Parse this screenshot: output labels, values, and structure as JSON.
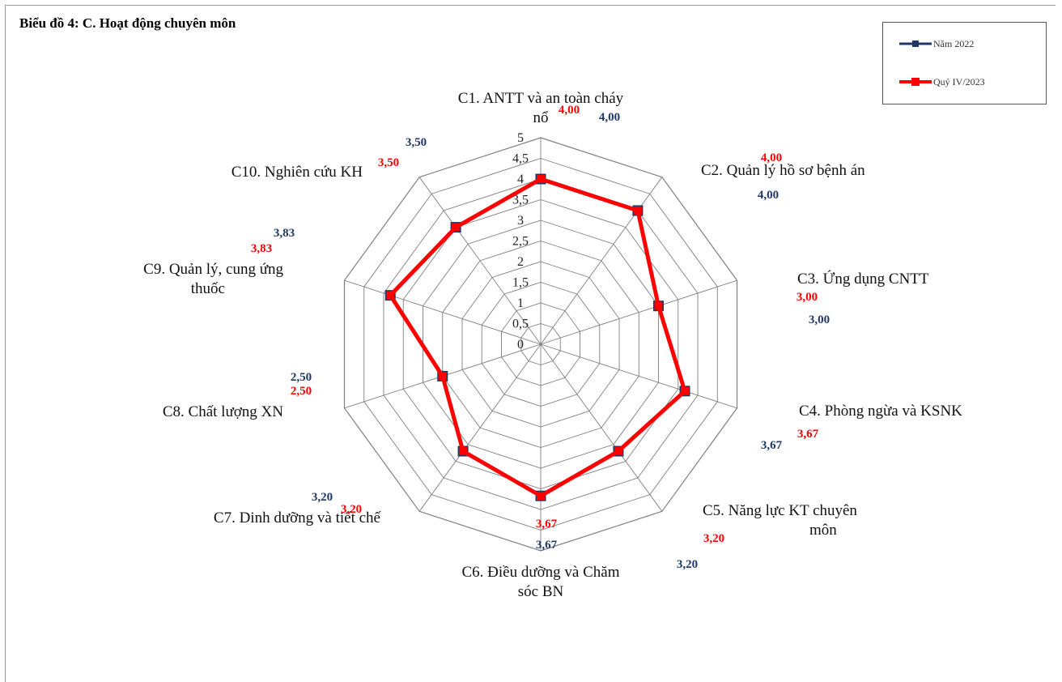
{
  "title": "Biểu đồ 4: C. Hoạt động chuyên môn",
  "colors": {
    "series_2022": "#1f3864",
    "series_2023": "#ff0000",
    "grid": "#7f7f7f"
  },
  "chart_data": {
    "type": "radar",
    "title": "Biểu đồ 4: C. Hoạt động chuyên môn",
    "categories": [
      [
        "C1. ANTT và an toàn cháy",
        "nổ"
      ],
      [
        "C2. Quản lý hồ sơ bệnh án"
      ],
      [
        "C3. Ứng dụng CNTT"
      ],
      [
        "C4. Phòng ngừa và KSNK"
      ],
      [
        "C5. Năng lực KT chuyên",
        "môn"
      ],
      [
        "C6. Điều dưỡng và Chăm",
        "sóc BN"
      ],
      [
        "C7. Dinh dưỡng và tiết chế"
      ],
      [
        "C8. Chất lượng XN"
      ],
      [
        "C9. Quản lý, cung ứng",
        "thuốc"
      ],
      [
        "C10. Nghiên cứu KH"
      ]
    ],
    "ticks": [
      "0",
      "0,5",
      "1",
      "1,5",
      "2",
      "2,5",
      "3",
      "3,5",
      "4",
      "4,5",
      "5"
    ],
    "rmax": 5,
    "legend": "top-right",
    "series": [
      {
        "name": "Năm 2022",
        "color": "#1f3864",
        "values": [
          4.0,
          4.0,
          3.0,
          3.67,
          3.2,
          3.67,
          3.2,
          2.5,
          3.83,
          3.5
        ],
        "labels": [
          "4,00",
          "4,00",
          "3,00",
          "3,67",
          "3,20",
          "3,67",
          "3,20",
          "2,50",
          "3,83",
          "3,50"
        ]
      },
      {
        "name": "Quý IV/2023",
        "color": "#ff0000",
        "values": [
          4.0,
          4.0,
          3.0,
          3.67,
          3.2,
          3.67,
          3.2,
          2.5,
          3.83,
          3.5
        ],
        "labels": [
          "4,00",
          "4,00",
          "3,00",
          "3,67",
          "3,20",
          "3,67",
          "3,20",
          "2,50",
          "3,83",
          "3,50"
        ]
      }
    ]
  }
}
